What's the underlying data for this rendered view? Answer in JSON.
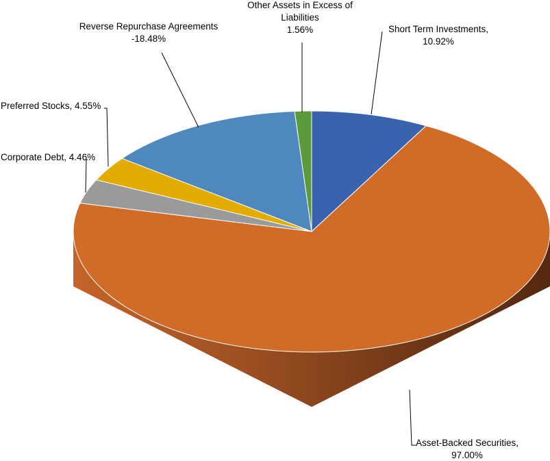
{
  "chart_data": {
    "type": "pie",
    "style": "3d",
    "slices": [
      {
        "name": "Short Term Investments",
        "value": 10.92,
        "label": "10.92%",
        "color": "#3a63ad"
      },
      {
        "name": "Asset-Backed Securities",
        "value": 97.0,
        "label": "97.00%",
        "color": "#d06b28"
      },
      {
        "name": "Corporate Debt",
        "value": 4.46,
        "label": "4.46%",
        "color": "#9a9a9a"
      },
      {
        "name": "Preferred Stocks",
        "value": 4.55,
        "label": "4.55%",
        "color": "#e2ad00"
      },
      {
        "name": "Reverse Repurchase Agreements",
        "value": -18.48,
        "label": "-18.48%",
        "color": "#4f88bf"
      },
      {
        "name": "Other Assets in Excess of Liabilities",
        "value": 1.56,
        "label": "1.56%",
        "color": "#5a9a3a"
      }
    ]
  }
}
